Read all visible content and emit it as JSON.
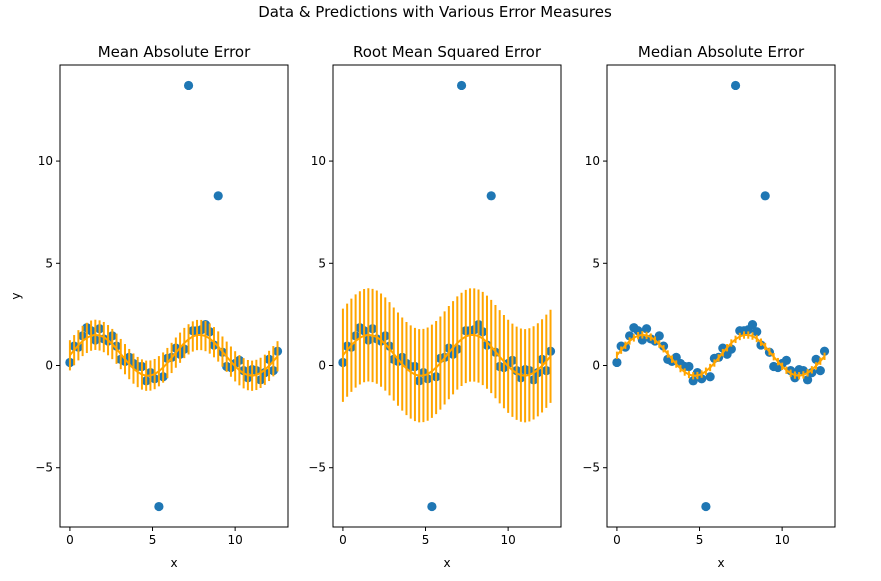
{
  "figure_title": "Data & Predictions with Various Error Measures",
  "colors": {
    "points": "#1f77b4",
    "predictions": "#ffa500",
    "axes": "#000000"
  },
  "chart_data": [
    {
      "type": "scatter",
      "title": "Mean Absolute Error",
      "xlabel": "x",
      "ylabel": "y",
      "xlim": [
        -0.6,
        13.2
      ],
      "ylim": [
        -7.9,
        14.7
      ],
      "xticks": [
        0,
        5,
        10
      ],
      "yticks": [
        -5,
        0,
        5,
        10
      ],
      "xtick_labels": [
        "0",
        "5",
        "10"
      ],
      "ytick_labels": [
        "−5",
        "0",
        "5",
        "10"
      ],
      "error": 0.74,
      "grid": false
    },
    {
      "type": "scatter",
      "title": "Root Mean Squared Error",
      "xlabel": "x",
      "ylabel": "",
      "xlim": [
        -0.6,
        13.2
      ],
      "ylim": [
        -7.9,
        14.7
      ],
      "xticks": [
        0,
        5,
        10
      ],
      "yticks": [
        -5,
        0,
        5,
        10
      ],
      "xtick_labels": [
        "0",
        "5",
        "10"
      ],
      "ytick_labels": [
        "−5",
        "0",
        "5",
        "10"
      ],
      "error": 2.28,
      "grid": false
    },
    {
      "type": "scatter",
      "title": "Median Absolute Error",
      "xlabel": "x",
      "ylabel": "",
      "xlim": [
        -0.6,
        13.2
      ],
      "ylim": [
        -7.9,
        14.7
      ],
      "xticks": [
        0,
        5,
        10
      ],
      "yticks": [
        -5,
        0,
        5,
        10
      ],
      "xtick_labels": [
        "0",
        "5",
        "10"
      ],
      "ytick_labels": [
        "−5",
        "0",
        "5",
        "10"
      ],
      "error": 0.18,
      "grid": false
    }
  ],
  "data": {
    "x": [
      0.0,
      0.256,
      0.513,
      0.769,
      1.026,
      1.282,
      1.539,
      1.795,
      2.051,
      2.308,
      2.564,
      2.821,
      3.077,
      3.334,
      3.59,
      3.847,
      4.103,
      4.36,
      4.616,
      4.873,
      5.129,
      5.386,
      5.642,
      5.899,
      6.155,
      6.411,
      6.668,
      6.924,
      7.181,
      7.437,
      7.694,
      7.95,
      8.207,
      8.463,
      8.72,
      8.976,
      9.233,
      9.489,
      9.746,
      10.002,
      10.259,
      10.515,
      10.772,
      11.028,
      11.285,
      11.541,
      11.798,
      12.054,
      12.311,
      12.566
    ],
    "y": [
      0.15,
      0.95,
      0.9,
      1.45,
      1.85,
      1.7,
      1.25,
      1.8,
      1.3,
      1.2,
      1.45,
      0.95,
      0.3,
      0.2,
      0.4,
      0.1,
      -0.05,
      -0.05,
      -0.75,
      -0.35,
      -0.65,
      -6.9,
      -0.55,
      0.35,
      0.4,
      0.85,
      0.55,
      0.8,
      13.7,
      1.7,
      1.7,
      1.75,
      2.0,
      1.65,
      1.0,
      8.3,
      0.65,
      -0.05,
      -0.1,
      0.1,
      0.25,
      -0.25,
      -0.6,
      -0.2,
      -0.25,
      -0.7,
      -0.35,
      0.3,
      -0.25,
      0.7
    ],
    "predictions": [
      0.5,
      0.75,
      0.99,
      1.2,
      1.35,
      1.46,
      1.5,
      1.47,
      1.39,
      1.24,
      1.05,
      0.82,
      0.56,
      0.31,
      0.07,
      -0.15,
      -0.32,
      -0.44,
      -0.5,
      -0.49,
      -0.42,
      -0.28,
      -0.1,
      0.12,
      0.37,
      0.63,
      0.87,
      1.1,
      1.28,
      1.42,
      1.49,
      1.49,
      1.44,
      1.32,
      1.14,
      0.93,
      0.68,
      0.43,
      0.19,
      -0.04,
      -0.23,
      -0.38,
      -0.47,
      -0.5,
      -0.46,
      -0.36,
      -0.21,
      -0.02,
      0.21,
      0.45
    ]
  }
}
